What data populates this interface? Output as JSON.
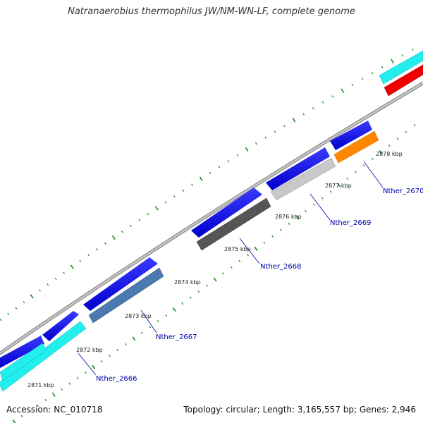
{
  "title": "Natranaerobius thermophilus JW/NM-WN-LF, complete genome",
  "footer": {
    "accession": "Accession: NC_010718",
    "summary": "Topology: circular; Length: 3,165,557 bp; Genes: 2,946"
  },
  "colors": {
    "forward_cds": "#0000ee",
    "backbone": "#888888",
    "tick": "#1a8a1a",
    "callout": "#0000aa"
  },
  "kbp_labels": [
    "2871 kbp",
    "2872 kbp",
    "2873 kbp",
    "2874 kbp",
    "2875 kbp",
    "2876 kbp",
    "2877 kbp",
    "2878 kbp"
  ],
  "genes": [
    {
      "name": "Nther_2666",
      "color": "#22eeee"
    },
    {
      "name": "Nther_2667",
      "color": "#4a7ab0"
    },
    {
      "name": "Nther_2668",
      "color": "#555555"
    },
    {
      "name": "Nther_2669",
      "color": "#c8c8c8"
    },
    {
      "name": "Nther_2670",
      "color": "#ff8800"
    }
  ],
  "other_features": [
    {
      "kind": "cds",
      "color": "#22eeee"
    },
    {
      "kind": "cds",
      "color": "#ee0000"
    }
  ]
}
